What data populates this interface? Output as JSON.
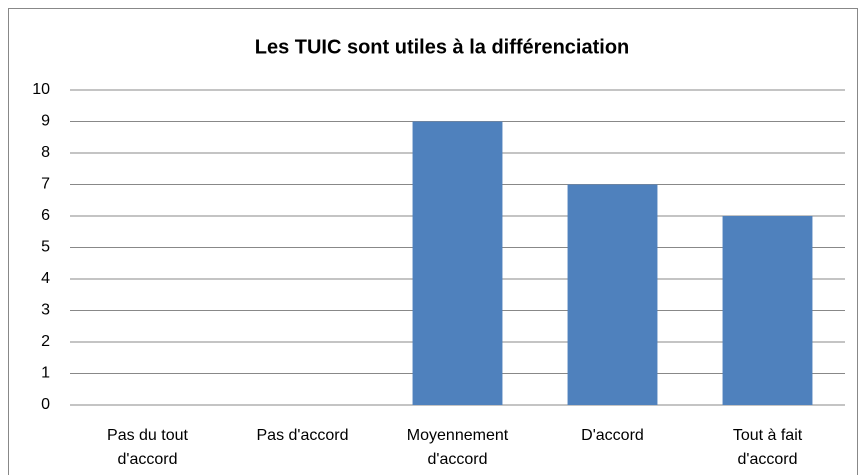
{
  "chart_data": {
    "type": "bar",
    "title": "Les TUIC sont utiles à la différenciation",
    "categories": [
      "Pas du tout d'accord",
      "Pas d'accord",
      "Moyennement d'accord",
      "D'accord",
      "Tout à fait d'accord"
    ],
    "values": [
      0,
      0,
      9,
      7,
      6
    ],
    "color": "#4f81bd",
    "ylim": [
      0,
      10
    ],
    "yticks": [
      0,
      1,
      2,
      3,
      4,
      5,
      6,
      7,
      8,
      9,
      10
    ],
    "grid": true
  }
}
